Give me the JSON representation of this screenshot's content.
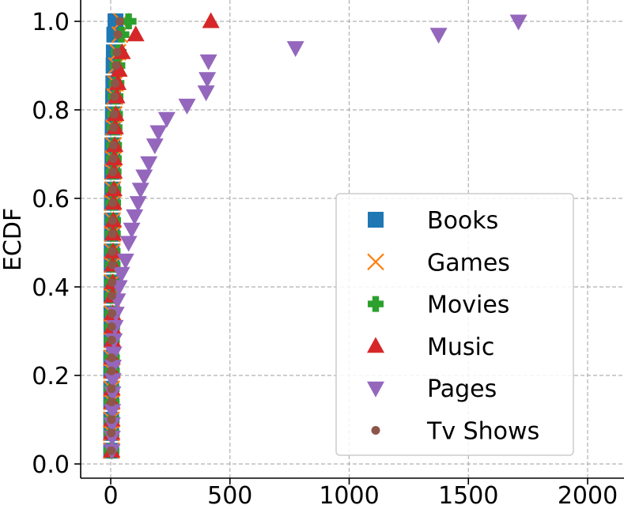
{
  "chart_data": {
    "type": "scatter",
    "title": "",
    "xlabel": "",
    "ylabel": "ECDF",
    "xlim": [
      -70,
      2000
    ],
    "ylim": [
      -0.02,
      1.04
    ],
    "xticks": [
      "0",
      "500",
      "1000",
      "1500",
      "2000"
    ],
    "yticks": [
      "0.0",
      "0.2",
      "0.4",
      "0.6",
      "0.8",
      "1.0"
    ],
    "grid": true,
    "legend_position": "lower-right",
    "series": [
      {
        "name": "Books",
        "marker": "square",
        "color": "#1f77b4",
        "points": [
          [
            2,
            0.03
          ],
          [
            2,
            0.07
          ],
          [
            2,
            0.1
          ],
          [
            2,
            0.14
          ],
          [
            2,
            0.17
          ],
          [
            2,
            0.21
          ],
          [
            2,
            0.24
          ],
          [
            3,
            0.28
          ],
          [
            3,
            0.31
          ],
          [
            3,
            0.34
          ],
          [
            3,
            0.38
          ],
          [
            4,
            0.41
          ],
          [
            4,
            0.45
          ],
          [
            4,
            0.48
          ],
          [
            5,
            0.52
          ],
          [
            5,
            0.55
          ],
          [
            5,
            0.59
          ],
          [
            6,
            0.62
          ],
          [
            6,
            0.66
          ],
          [
            7,
            0.69
          ],
          [
            7,
            0.72
          ],
          [
            8,
            0.76
          ],
          [
            9,
            0.79
          ],
          [
            10,
            0.83
          ],
          [
            11,
            0.86
          ],
          [
            12,
            0.9
          ],
          [
            13,
            0.93
          ],
          [
            15,
            0.97
          ],
          [
            20,
            1.0
          ]
        ]
      },
      {
        "name": "Games",
        "marker": "x",
        "color": "#ff7f0e",
        "points": [
          [
            3,
            0.03
          ],
          [
            3,
            0.07
          ],
          [
            3,
            0.1
          ],
          [
            4,
            0.14
          ],
          [
            4,
            0.17
          ],
          [
            4,
            0.21
          ],
          [
            4,
            0.24
          ],
          [
            5,
            0.28
          ],
          [
            5,
            0.31
          ],
          [
            5,
            0.34
          ],
          [
            6,
            0.38
          ],
          [
            6,
            0.41
          ],
          [
            7,
            0.45
          ],
          [
            7,
            0.48
          ],
          [
            8,
            0.52
          ],
          [
            8,
            0.55
          ],
          [
            9,
            0.59
          ],
          [
            9,
            0.62
          ],
          [
            10,
            0.66
          ],
          [
            11,
            0.69
          ],
          [
            12,
            0.72
          ],
          [
            13,
            0.76
          ],
          [
            15,
            0.79
          ],
          [
            17,
            0.83
          ],
          [
            20,
            0.86
          ],
          [
            24,
            0.9
          ],
          [
            30,
            0.93
          ],
          [
            38,
            0.97
          ],
          [
            45,
            1.0
          ]
        ]
      },
      {
        "name": "Movies",
        "marker": "plus",
        "color": "#2ca02c",
        "points": [
          [
            3,
            0.03
          ],
          [
            3,
            0.07
          ],
          [
            4,
            0.1
          ],
          [
            4,
            0.14
          ],
          [
            4,
            0.17
          ],
          [
            5,
            0.21
          ],
          [
            5,
            0.24
          ],
          [
            5,
            0.28
          ],
          [
            6,
            0.31
          ],
          [
            6,
            0.34
          ],
          [
            7,
            0.38
          ],
          [
            7,
            0.41
          ],
          [
            8,
            0.45
          ],
          [
            8,
            0.48
          ],
          [
            9,
            0.52
          ],
          [
            10,
            0.55
          ],
          [
            10,
            0.59
          ],
          [
            11,
            0.62
          ],
          [
            12,
            0.66
          ],
          [
            13,
            0.69
          ],
          [
            14,
            0.72
          ],
          [
            16,
            0.76
          ],
          [
            18,
            0.79
          ],
          [
            20,
            0.83
          ],
          [
            24,
            0.86
          ],
          [
            28,
            0.9
          ],
          [
            33,
            0.93
          ],
          [
            45,
            0.97
          ],
          [
            75,
            1.0
          ]
        ]
      },
      {
        "name": "Music",
        "marker": "triangle-up",
        "color": "#d62728",
        "points": [
          [
            4,
            0.03
          ],
          [
            4,
            0.07
          ],
          [
            5,
            0.1
          ],
          [
            5,
            0.14
          ],
          [
            5,
            0.17
          ],
          [
            6,
            0.21
          ],
          [
            6,
            0.24
          ],
          [
            7,
            0.28
          ],
          [
            7,
            0.31
          ],
          [
            8,
            0.34
          ],
          [
            8,
            0.38
          ],
          [
            9,
            0.41
          ],
          [
            9,
            0.45
          ],
          [
            10,
            0.48
          ],
          [
            10,
            0.52
          ],
          [
            11,
            0.55
          ],
          [
            12,
            0.59
          ],
          [
            13,
            0.62
          ],
          [
            14,
            0.66
          ],
          [
            15,
            0.69
          ],
          [
            17,
            0.72
          ],
          [
            19,
            0.76
          ],
          [
            21,
            0.79
          ],
          [
            25,
            0.83
          ],
          [
            30,
            0.86
          ],
          [
            35,
            0.89
          ],
          [
            48,
            0.93
          ],
          [
            105,
            0.97
          ],
          [
            420,
            1.0
          ]
        ]
      },
      {
        "name": "Pages",
        "marker": "triangle-down",
        "color": "#9467bd",
        "points": [
          [
            5,
            0.03
          ],
          [
            6,
            0.06
          ],
          [
            6,
            0.09
          ],
          [
            7,
            0.12
          ],
          [
            8,
            0.16
          ],
          [
            9,
            0.19
          ],
          [
            10,
            0.22
          ],
          [
            12,
            0.25
          ],
          [
            14,
            0.28
          ],
          [
            18,
            0.31
          ],
          [
            22,
            0.34
          ],
          [
            28,
            0.37
          ],
          [
            35,
            0.4
          ],
          [
            45,
            0.43
          ],
          [
            62,
            0.46
          ],
          [
            75,
            0.5
          ],
          [
            88,
            0.53
          ],
          [
            100,
            0.56
          ],
          [
            115,
            0.59
          ],
          [
            125,
            0.62
          ],
          [
            140,
            0.65
          ],
          [
            160,
            0.68
          ],
          [
            185,
            0.72
          ],
          [
            200,
            0.75
          ],
          [
            235,
            0.78
          ],
          [
            320,
            0.81
          ],
          [
            400,
            0.84
          ],
          [
            405,
            0.87
          ],
          [
            410,
            0.91
          ],
          [
            775,
            0.94
          ],
          [
            1375,
            0.97
          ],
          [
            1710,
            1.0
          ]
        ]
      },
      {
        "name": "Tv Shows",
        "marker": "circle",
        "color": "#8c564b",
        "points": [
          [
            2,
            0.03
          ],
          [
            2,
            0.07
          ],
          [
            3,
            0.1
          ],
          [
            3,
            0.14
          ],
          [
            3,
            0.17
          ],
          [
            3,
            0.21
          ],
          [
            4,
            0.24
          ],
          [
            4,
            0.28
          ],
          [
            4,
            0.31
          ],
          [
            5,
            0.34
          ],
          [
            5,
            0.38
          ],
          [
            5,
            0.41
          ],
          [
            6,
            0.45
          ],
          [
            6,
            0.48
          ],
          [
            7,
            0.52
          ],
          [
            7,
            0.55
          ],
          [
            8,
            0.59
          ],
          [
            8,
            0.62
          ],
          [
            9,
            0.66
          ],
          [
            10,
            0.69
          ],
          [
            11,
            0.72
          ],
          [
            12,
            0.76
          ],
          [
            14,
            0.79
          ],
          [
            16,
            0.83
          ],
          [
            18,
            0.86
          ],
          [
            22,
            0.9
          ],
          [
            26,
            0.93
          ],
          [
            30,
            0.97
          ],
          [
            38,
            1.0
          ]
        ]
      }
    ]
  }
}
